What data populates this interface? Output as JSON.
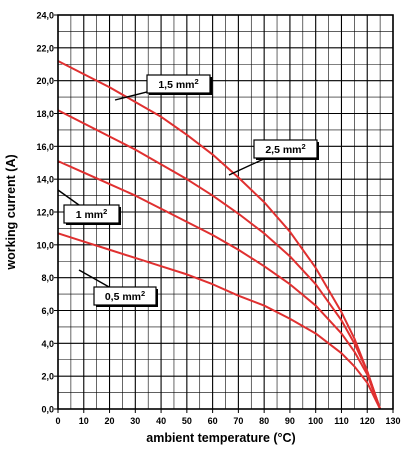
{
  "chart_data": {
    "type": "line",
    "xlabel": "ambient temperature (°C)",
    "ylabel": "working current (A)",
    "xlim": [
      0,
      130
    ],
    "ylim": [
      0,
      24
    ],
    "x_ticks": [
      0,
      10,
      20,
      30,
      40,
      50,
      60,
      70,
      80,
      90,
      100,
      110,
      120,
      130
    ],
    "x_tick_labels": [
      "0",
      "10",
      "20",
      "30",
      "40",
      "50",
      "60",
      "70",
      "80",
      "90",
      "100",
      "110",
      "120",
      "130"
    ],
    "y_ticks": [
      0,
      2,
      4,
      6,
      8,
      10,
      12,
      14,
      16,
      18,
      20,
      22,
      24
    ],
    "y_tick_labels": [
      "0,0",
      "2,0",
      "4,0",
      "6,0",
      "8,0",
      "10,0",
      "12,0",
      "14,0",
      "16,0",
      "18,0",
      "20,0",
      "22,0",
      "24,0"
    ],
    "grid": true,
    "line_color": "#e03030",
    "series": [
      {
        "name": "2,5 mm²",
        "label_sup": "2",
        "x": [
          0,
          10,
          20,
          30,
          40,
          50,
          60,
          70,
          80,
          90,
          100,
          110,
          115,
          120,
          125
        ],
        "values": [
          21.2,
          20.4,
          19.6,
          18.7,
          17.8,
          16.7,
          15.5,
          14.1,
          12.6,
          10.8,
          8.6,
          5.9,
          4.3,
          2.3,
          0
        ]
      },
      {
        "name": "1,5 mm²",
        "label_sup": "2",
        "x": [
          0,
          10,
          20,
          30,
          40,
          50,
          60,
          70,
          80,
          90,
          100,
          110,
          115,
          120,
          125
        ],
        "values": [
          18.2,
          17.4,
          16.6,
          15.8,
          14.9,
          14.0,
          13.0,
          11.9,
          10.7,
          9.3,
          7.6,
          5.4,
          4.0,
          2.3,
          0
        ]
      },
      {
        "name": "1 mm²",
        "label_sup": "2",
        "x": [
          0,
          10,
          20,
          30,
          40,
          50,
          60,
          70,
          80,
          90,
          100,
          110,
          115,
          120,
          125
        ],
        "values": [
          15.1,
          14.4,
          13.7,
          13.0,
          12.2,
          11.4,
          10.6,
          9.7,
          8.7,
          7.6,
          6.3,
          4.6,
          3.5,
          2.1,
          0
        ]
      },
      {
        "name": "0,5 mm²",
        "label_sup": "2",
        "x": [
          0,
          10,
          20,
          30,
          40,
          50,
          60,
          70,
          80,
          90,
          100,
          110,
          115,
          120,
          125
        ],
        "values": [
          10.7,
          10.2,
          9.7,
          9.2,
          8.7,
          8.2,
          7.6,
          6.9,
          6.3,
          5.5,
          4.6,
          3.4,
          2.6,
          1.6,
          0
        ]
      }
    ]
  }
}
